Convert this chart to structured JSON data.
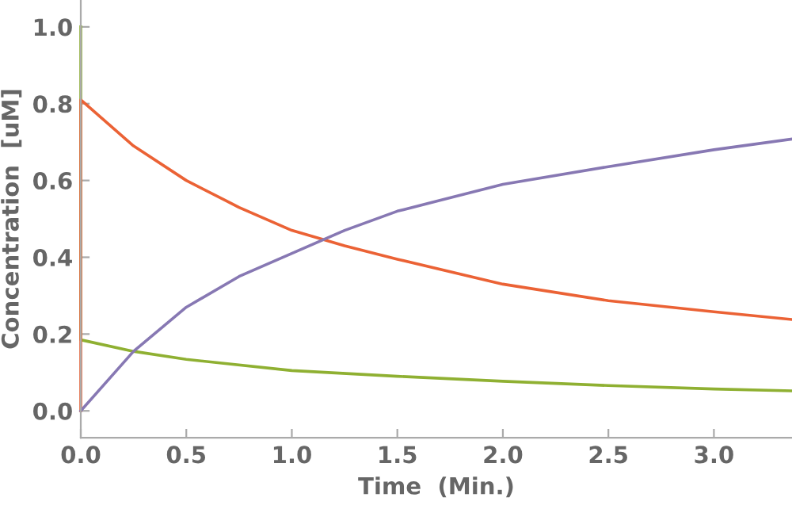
{
  "chart_data": {
    "type": "line",
    "xlabel": "Time  (Min.)",
    "ylabel": "Concentration  [uM]",
    "xlim": [
      0,
      3.37
    ],
    "ylim": [
      -0.07,
      1.07
    ],
    "xticks": [
      {
        "value": 0,
        "label": "0.0"
      },
      0.5,
      {
        "value": 1,
        "label": "1.0"
      },
      1.5,
      {
        "value": 2,
        "label": "2.0"
      },
      2.5,
      {
        "value": 3,
        "label": "3.0"
      }
    ],
    "yticks": [
      {
        "value": 0,
        "label": "0.0"
      },
      0.2,
      0.4,
      0.6,
      0.8,
      {
        "value": 1,
        "label": "1.0"
      }
    ],
    "grid": false,
    "legend": false,
    "marker": "none",
    "line_style": "solid",
    "series": [
      {
        "color": "#8fb032",
        "x": [
          0,
          0,
          0.25,
          0.5,
          1.0,
          1.5,
          2.0,
          2.5,
          3.0,
          3.37
        ],
        "values": [
          1.0,
          0.185,
          0.155,
          0.134,
          0.105,
          0.09,
          0.077,
          0.066,
          0.057,
          0.052
        ]
      },
      {
        "color": "#eb6235",
        "x": [
          0,
          0,
          0.25,
          0.5,
          0.75,
          1.0,
          1.25,
          1.5,
          2.0,
          2.5,
          3.0,
          3.37
        ],
        "values": [
          0.0,
          0.81,
          0.69,
          0.6,
          0.53,
          0.47,
          0.43,
          0.395,
          0.33,
          0.287,
          0.258,
          0.238
        ]
      },
      {
        "color": "#8778b3",
        "x": [
          0,
          0.25,
          0.5,
          0.75,
          1.0,
          1.25,
          1.5,
          2.0,
          2.5,
          3.0,
          3.37
        ],
        "values": [
          0.0,
          0.155,
          0.27,
          0.35,
          0.41,
          0.47,
          0.52,
          0.59,
          0.636,
          0.68,
          0.708
        ]
      }
    ]
  }
}
